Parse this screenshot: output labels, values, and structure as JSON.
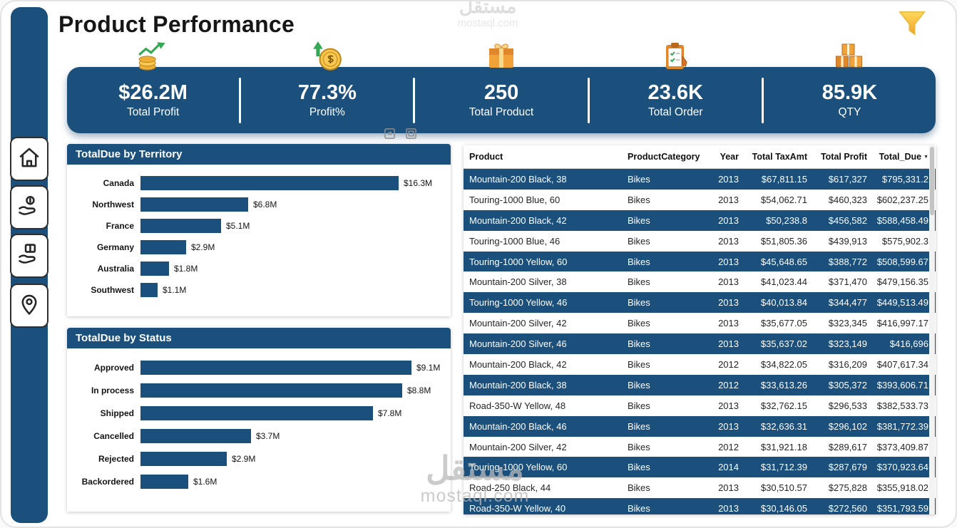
{
  "header": {
    "title": "Product Performance"
  },
  "watermark": {
    "arabic": "مستقل",
    "latin": "mostaql.com"
  },
  "colors": {
    "primary": "#1b4f7c",
    "accent_yellow": "#f7c955",
    "accent_orange": "#e0872b",
    "accent_green": "#35a853"
  },
  "sidebar": {
    "items": [
      {
        "label": "home"
      },
      {
        "label": "profit"
      },
      {
        "label": "products"
      },
      {
        "label": "territory"
      }
    ]
  },
  "kpis": [
    {
      "value": "$26.2M",
      "label": "Total Profit",
      "icon": "money-growth-icon"
    },
    {
      "value": "77.3%",
      "label": "Profit%",
      "icon": "coin-up-arrow-icon"
    },
    {
      "value": "250",
      "label": "Total Product",
      "icon": "package-icon"
    },
    {
      "value": "23.6K",
      "label": "Total Order",
      "icon": "clipboard-icon"
    },
    {
      "value": "85.9K",
      "label": "QTY",
      "icon": "stacked-boxes-icon"
    }
  ],
  "chart_data": [
    {
      "type": "bar",
      "orientation": "horizontal",
      "title": "TotalDue by Territory",
      "categories": [
        "Canada",
        "Northwest",
        "France",
        "Germany",
        "Australia",
        "Southwest"
      ],
      "values": [
        16.3,
        6.8,
        5.1,
        2.9,
        1.8,
        1.1
      ],
      "labels": [
        "$16.3M",
        "$6.8M",
        "$5.1M",
        "$2.9M",
        "$1.8M",
        "$1.1M"
      ],
      "unit": "USD millions",
      "xlim": [
        0,
        16.3
      ],
      "grid": false,
      "bar_color": "#1b4f7c"
    },
    {
      "type": "bar",
      "orientation": "horizontal",
      "title": "TotalDue by Status",
      "categories": [
        "Approved",
        "In process",
        "Shipped",
        "Cancelled",
        "Rejected",
        "Backordered"
      ],
      "values": [
        9.1,
        8.8,
        7.8,
        3.7,
        2.9,
        1.6
      ],
      "labels": [
        "$9.1M",
        "$8.8M",
        "$7.8M",
        "$3.7M",
        "$2.9M",
        "$1.6M"
      ],
      "unit": "USD millions",
      "xlim": [
        0,
        9.1
      ],
      "grid": false,
      "bar_color": "#1b4f7c"
    }
  ],
  "table": {
    "columns": [
      "Product",
      "ProductCategory",
      "Year",
      "Total TaxAmt",
      "Total Profit",
      "Total_Due"
    ],
    "sorted_by": "Total_Due",
    "sort_direction": "descending",
    "rows": [
      [
        "Mountain-200 Black, 38",
        "Bikes",
        "2013",
        "$67,811.15",
        "$617,327",
        "$795,331.2"
      ],
      [
        "Touring-1000 Blue, 60",
        "Bikes",
        "2013",
        "$54,062.71",
        "$460,323",
        "$602,237.25"
      ],
      [
        "Mountain-200 Black, 42",
        "Bikes",
        "2013",
        "$50,238.8",
        "$456,582",
        "$588,458.49"
      ],
      [
        "Touring-1000 Blue, 46",
        "Bikes",
        "2013",
        "$51,805.36",
        "$439,913",
        "$575,902.3"
      ],
      [
        "Touring-1000 Yellow, 60",
        "Bikes",
        "2013",
        "$45,648.65",
        "$388,772",
        "$508,599.67"
      ],
      [
        "Mountain-200 Silver, 38",
        "Bikes",
        "2013",
        "$41,023.44",
        "$371,470",
        "$479,156.35"
      ],
      [
        "Touring-1000 Yellow, 46",
        "Bikes",
        "2013",
        "$40,013.84",
        "$344,477",
        "$449,513.49"
      ],
      [
        "Mountain-200 Silver, 42",
        "Bikes",
        "2013",
        "$35,677.05",
        "$323,345",
        "$416,997.17"
      ],
      [
        "Mountain-200 Silver, 46",
        "Bikes",
        "2013",
        "$35,637.02",
        "$323,149",
        "$416,696"
      ],
      [
        "Mountain-200 Black, 42",
        "Bikes",
        "2012",
        "$34,822.05",
        "$316,209",
        "$407,617.34"
      ],
      [
        "Mountain-200 Black, 38",
        "Bikes",
        "2012",
        "$33,613.26",
        "$305,372",
        "$393,606.71"
      ],
      [
        "Road-350-W Yellow, 48",
        "Bikes",
        "2013",
        "$32,762.15",
        "$296,533",
        "$382,533.73"
      ],
      [
        "Mountain-200 Black, 46",
        "Bikes",
        "2013",
        "$32,636.31",
        "$296,102",
        "$381,772.39"
      ],
      [
        "Mountain-200 Silver, 42",
        "Bikes",
        "2012",
        "$31,921.18",
        "$289,617",
        "$373,409.87"
      ],
      [
        "Touring-1000 Yellow, 60",
        "Bikes",
        "2014",
        "$31,712.39",
        "$287,679",
        "$370,923.64"
      ],
      [
        "Road-250 Black, 44",
        "Bikes",
        "2013",
        "$30,510.57",
        "$275,828",
        "$355,918.02"
      ],
      [
        "Road-350-W Yellow, 40",
        "Bikes",
        "2013",
        "$30,146.05",
        "$272,560",
        "$351,793.59"
      ]
    ]
  }
}
